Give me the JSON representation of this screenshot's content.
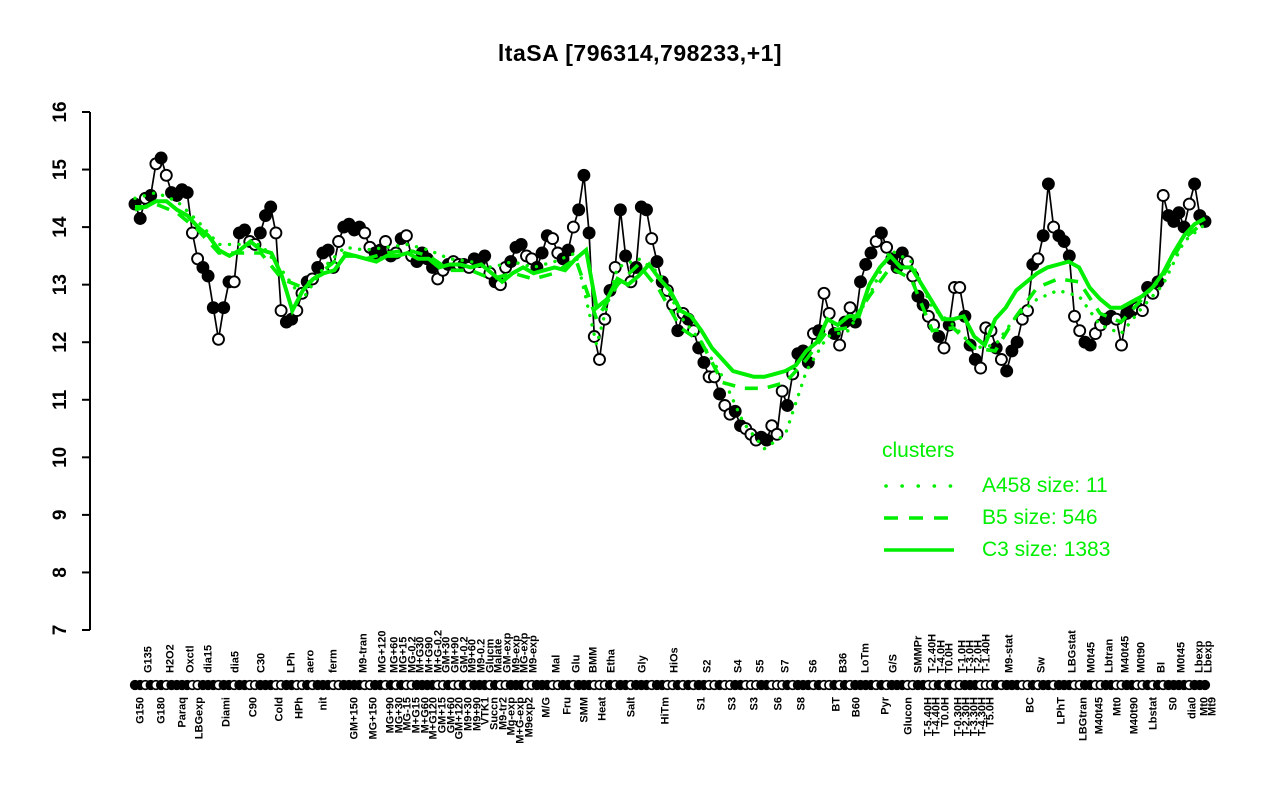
{
  "title": "ltaSA [796314,798233,+1]",
  "colors": {
    "cluster_green": "#00ee00",
    "series_black": "#000000",
    "background": "#ffffff"
  },
  "legend": {
    "header": "clusters",
    "items": [
      {
        "label": "A458 size: 11",
        "style": "dotted"
      },
      {
        "label": "B5 size: 546",
        "style": "dashed"
      },
      {
        "label": "C3 size: 1383",
        "style": "solid"
      }
    ]
  },
  "chart_data": {
    "type": "line",
    "title": "ltaSA [796314,798233,+1]",
    "xlabel": "",
    "ylabel": "",
    "ylim": [
      7,
      16
    ],
    "y_ticks": [
      7,
      8,
      9,
      10,
      11,
      12,
      13,
      14,
      15,
      16
    ],
    "grid": false,
    "legend_position": "right-middle",
    "gene_series": {
      "name": "ltaSA",
      "color": "#000000",
      "markers": "ffofofoffffoofffoffoffoofffooffoofofffooffffooffofofooffffoofoofofffofoofffoofffooffofffooofoffofffoffoofofoffoofooffoooffooofofffofoofofoffffofofffooffoofofoofffooofofffoofoffofffooffooffooffoofofoffffofff",
      "values": [
        14.4,
        14.15,
        14.5,
        14.55,
        15.1,
        15.2,
        14.9,
        14.6,
        14.55,
        14.65,
        14.6,
        13.9,
        13.45,
        13.3,
        13.15,
        12.6,
        12.05,
        12.6,
        13.05,
        13.05,
        13.9,
        13.95,
        13.75,
        13.7,
        13.9,
        14.2,
        14.35,
        13.9,
        12.55,
        12.35,
        12.4,
        12.55,
        12.85,
        13.05,
        13.1,
        13.3,
        13.55,
        13.6,
        13.3,
        13.75,
        14.0,
        14.05,
        13.95,
        14.0,
        13.9,
        13.65,
        13.55,
        13.6,
        13.75,
        13.5,
        13.55,
        13.8,
        13.85,
        13.5,
        13.4,
        13.55,
        13.45,
        13.3,
        13.1,
        13.25,
        13.35,
        13.4,
        13.35,
        13.35,
        13.3,
        13.45,
        13.4,
        13.5,
        13.2,
        13.05,
        13.0,
        13.3,
        13.4,
        13.65,
        13.7,
        13.5,
        13.45,
        13.3,
        13.55,
        13.85,
        13.8,
        13.55,
        13.45,
        13.6,
        14.0,
        14.3,
        14.9,
        13.9,
        12.1,
        11.7,
        12.4,
        12.9,
        13.3,
        14.3,
        13.5,
        13.05,
        13.3,
        14.35,
        14.3,
        13.8,
        13.4,
        13.05,
        12.9,
        12.65,
        12.2,
        12.5,
        12.4,
        12.2,
        11.9,
        11.65,
        11.4,
        11.4,
        11.1,
        10.9,
        10.75,
        10.8,
        10.55,
        10.5,
        10.4,
        10.3,
        10.35,
        10.3,
        10.55,
        10.4,
        11.15,
        10.9,
        11.45,
        11.8,
        11.85,
        11.65,
        12.15,
        12.2,
        12.85,
        12.5,
        12.15,
        11.95,
        12.35,
        12.6,
        12.35,
        13.05,
        13.35,
        13.55,
        13.75,
        13.9,
        13.65,
        13.45,
        13.3,
        13.55,
        13.4,
        13.15,
        12.8,
        12.65,
        12.45,
        12.3,
        12.1,
        11.9,
        12.3,
        12.95,
        12.95,
        12.45,
        11.95,
        11.7,
        11.55,
        12.25,
        12.2,
        11.9,
        11.7,
        11.5,
        11.85,
        12.0,
        12.4,
        12.55,
        13.35,
        13.45,
        13.85,
        14.75,
        14.0,
        13.85,
        13.75,
        13.5,
        12.45,
        12.2,
        12.0,
        11.95,
        12.15,
        12.3,
        12.4,
        12.45,
        12.4,
        11.95,
        12.5,
        12.55,
        12.6,
        12.55,
        12.95,
        12.85,
        13.05,
        14.55,
        14.2,
        14.1,
        14.25,
        14.0,
        14.4,
        14.75,
        14.2,
        14.1
      ]
    },
    "cluster_series": [
      {
        "name": "A458",
        "size": 11,
        "style": "dotted",
        "values": [
          14.5,
          14.6,
          14.45,
          14.1,
          13.7,
          13.7,
          13.7,
          13.25,
          12.75,
          13.3,
          13.65,
          13.6,
          13.65,
          13.7,
          13.6,
          13.45,
          13.4,
          13.3,
          13.4,
          13.3,
          13.4,
          13.55,
          11.95,
          13.3,
          13.45,
          13.2,
          12.45,
          12.0,
          11.4,
          10.6,
          10.15,
          10.4,
          11.5,
          12.1,
          12.2,
          12.8,
          13.6,
          13.4,
          12.6,
          12.3,
          11.9,
          11.95,
          12.45,
          12.75,
          12.9,
          12.8,
          12.3,
          12.15,
          12.6,
          13.0,
          13.75,
          14.05
        ]
      },
      {
        "name": "B5",
        "size": 546,
        "style": "dashed",
        "values": [
          14.3,
          14.4,
          14.25,
          13.95,
          13.55,
          13.55,
          13.55,
          13.1,
          12.95,
          13.25,
          13.55,
          13.45,
          13.55,
          13.6,
          13.5,
          13.25,
          13.25,
          13.1,
          13.2,
          13.1,
          13.2,
          13.45,
          12.4,
          13.0,
          13.35,
          12.9,
          12.25,
          12.0,
          11.3,
          11.2,
          11.2,
          11.3,
          11.7,
          12.2,
          12.25,
          12.8,
          13.3,
          13.1,
          12.2,
          12.25,
          11.9,
          11.85,
          12.45,
          12.95,
          13.1,
          13.05,
          12.5,
          12.35,
          12.75,
          13.15,
          13.8,
          14.1
        ]
      },
      {
        "name": "C3",
        "size": 1383,
        "style": "solid",
        "values": [
          14.35,
          14.35,
          14.45,
          14.45,
          14.3,
          14.2,
          14.0,
          13.85,
          13.6,
          13.5,
          13.6,
          13.75,
          13.6,
          13.55,
          13.15,
          12.55,
          12.9,
          13.1,
          13.2,
          13.25,
          13.5,
          13.5,
          13.45,
          13.4,
          13.5,
          13.5,
          13.55,
          13.45,
          13.45,
          13.3,
          13.35,
          13.35,
          13.3,
          13.35,
          13.2,
          13.05,
          13.2,
          13.3,
          13.2,
          13.25,
          13.3,
          13.25,
          13.45,
          13.6,
          12.6,
          12.75,
          13.1,
          13.0,
          13.15,
          13.35,
          13.1,
          12.9,
          12.55,
          12.45,
          12.2,
          11.9,
          11.7,
          11.5,
          11.45,
          11.4,
          11.4,
          11.45,
          11.5,
          11.6,
          11.85,
          12.0,
          12.4,
          12.3,
          12.45,
          12.45,
          13.0,
          13.3,
          13.5,
          13.3,
          13.3,
          13.0,
          12.7,
          12.4,
          12.4,
          12.45,
          12.1,
          11.95,
          12.4,
          12.6,
          12.9,
          13.05,
          13.2,
          13.3,
          13.35,
          13.4,
          13.3,
          12.95,
          12.75,
          12.6,
          12.6,
          12.7,
          12.8,
          12.95,
          13.2,
          13.55,
          13.85,
          14.05,
          14.15
        ]
      }
    ],
    "axis_strip_markers": "ffofofoffffoofffoffoffoofffooffoofofffooffffooffofofooffffoofoofofffofoofffoofffooffofffooofoffofffoffoofofoffoofooffoooffooofofffofoofofoffffofofffooffoofofoofffooofofffoofoffofffooffooffooffoofofoffffofff",
    "x_tick_labels": [
      [
        140,
        "b",
        "G150"
      ],
      [
        148,
        "t",
        "G135"
      ],
      [
        161,
        "b",
        "G180"
      ],
      [
        170,
        "t",
        "H2O2"
      ],
      [
        182,
        "b",
        "Paraq"
      ],
      [
        190,
        "t",
        "Oxctl"
      ],
      [
        199,
        "b",
        "LBGexp"
      ],
      [
        208,
        "t",
        "dia15"
      ],
      [
        226,
        "b",
        "Diami"
      ],
      [
        235,
        "t",
        "dia5"
      ],
      [
        253,
        "b",
        "C90"
      ],
      [
        261,
        "t",
        "C30"
      ],
      [
        279,
        "b",
        "Cold"
      ],
      [
        291,
        "t",
        "LPh"
      ],
      [
        299,
        "b",
        "HPh"
      ],
      [
        310,
        "t",
        "aero"
      ],
      [
        323,
        "b",
        "nit"
      ],
      [
        333,
        "t",
        "ferm"
      ],
      [
        354,
        "b",
        "GM+150"
      ],
      [
        363,
        "t",
        "M9-tran"
      ],
      [
        373,
        "b",
        "MG+150"
      ],
      [
        382,
        "t",
        "MG+120"
      ],
      [
        390,
        "b",
        "MG+90"
      ],
      [
        394,
        "t",
        "MG+60"
      ],
      [
        399,
        "b",
        "MG+30"
      ],
      [
        403,
        "t",
        "MG+15"
      ],
      [
        407,
        "b",
        "MG-15"
      ],
      [
        412,
        "t",
        "MG-0.2"
      ],
      [
        416,
        "b",
        "M+G15"
      ],
      [
        420,
        "t",
        "M+G30"
      ],
      [
        425,
        "b",
        "M+G60"
      ],
      [
        429,
        "t",
        "M+G90"
      ],
      [
        433,
        "b",
        "M+G120"
      ],
      [
        438,
        "t",
        "M+G-0.2"
      ],
      [
        442,
        "b",
        "GM+15"
      ],
      [
        446,
        "t",
        "GM+30"
      ],
      [
        451,
        "b",
        "GM+60"
      ],
      [
        455,
        "t",
        "GM+90"
      ],
      [
        459,
        "b",
        "GM+120"
      ],
      [
        464,
        "t",
        "GM-0.2"
      ],
      [
        468,
        "b",
        "M9+30"
      ],
      [
        472,
        "t",
        "M9+60"
      ],
      [
        477,
        "b",
        "M9+90"
      ],
      [
        481,
        "t",
        "M9-0.2"
      ],
      [
        485,
        "b",
        "VTK1"
      ],
      [
        490,
        "t",
        "Glucm"
      ],
      [
        494,
        "b",
        "Succn"
      ],
      [
        498,
        "t",
        "Malate"
      ],
      [
        503,
        "b",
        "M9-tr2"
      ],
      [
        507,
        "t",
        "GM-exp"
      ],
      [
        511,
        "b",
        "Mg-exp"
      ],
      [
        516,
        "t",
        "M9-exp"
      ],
      [
        520,
        "b",
        "M+G-exp"
      ],
      [
        524,
        "t",
        "MG-exp"
      ],
      [
        529,
        "b",
        "M9exp2"
      ],
      [
        533,
        "t",
        "M9-exp"
      ],
      [
        546,
        "b",
        "M/G"
      ],
      [
        556,
        "t",
        "Mal"
      ],
      [
        567,
        "b",
        "Fru"
      ],
      [
        576,
        "t",
        "Glu"
      ],
      [
        584,
        "b",
        "SMM"
      ],
      [
        593,
        "t",
        "BMM"
      ],
      [
        602,
        "b",
        "Heat"
      ],
      [
        611,
        "t",
        "Etha"
      ],
      [
        631,
        "b",
        "Salt"
      ],
      [
        642,
        "t",
        "Gly"
      ],
      [
        665,
        "b",
        "HiTm"
      ],
      [
        674,
        "t",
        "HiOs"
      ],
      [
        701,
        "b",
        "S1"
      ],
      [
        707,
        "t",
        "S2"
      ],
      [
        732,
        "b",
        "S3"
      ],
      [
        738,
        "t",
        "S4"
      ],
      [
        754,
        "b",
        "S3"
      ],
      [
        760,
        "t",
        "S5"
      ],
      [
        778,
        "b",
        "S6"
      ],
      [
        785,
        "t",
        "S7"
      ],
      [
        801,
        "b",
        "S8"
      ],
      [
        813,
        "t",
        "S6"
      ],
      [
        836,
        "b",
        "BT"
      ],
      [
        843,
        "t",
        "B36"
      ],
      [
        856,
        "b",
        "B60"
      ],
      [
        865,
        "t",
        "LoTm"
      ],
      [
        885,
        "b",
        "Pyr"
      ],
      [
        893,
        "t",
        "G/S"
      ],
      [
        908,
        "b",
        "Glucon"
      ],
      [
        918,
        "t",
        "SMMPr"
      ],
      [
        928,
        "b",
        "T-5.40H"
      ],
      [
        932,
        "t",
        "T-2.40H"
      ],
      [
        936,
        "b",
        "T-4.40H"
      ],
      [
        941,
        "t",
        "T-4.0H"
      ],
      [
        945,
        "b",
        "T0.0H"
      ],
      [
        949,
        "t",
        "T0.0H"
      ],
      [
        958,
        "b",
        "T-0.30H"
      ],
      [
        962,
        "t",
        "T-1.0H"
      ],
      [
        966,
        "b",
        "T-2.30H"
      ],
      [
        970,
        "t",
        "T-3.0H"
      ],
      [
        974,
        "b",
        "T-3.30H"
      ],
      [
        978,
        "t",
        "T-2.0H"
      ],
      [
        982,
        "b",
        "T-4.30H"
      ],
      [
        986,
        "t",
        "T-1.40H"
      ],
      [
        990,
        "b",
        "T5.0H"
      ],
      [
        1009,
        "t",
        "M9-stat"
      ],
      [
        1030,
        "b",
        "BC"
      ],
      [
        1041,
        "t",
        "Sw"
      ],
      [
        1061,
        "b",
        "LPhT"
      ],
      [
        1072,
        "t",
        "LBGstat"
      ],
      [
        1083,
        "b",
        "LBGtran"
      ],
      [
        1091,
        "t",
        "M0t45"
      ],
      [
        1099,
        "b",
        "M40t45"
      ],
      [
        1109,
        "t",
        "Lbtran"
      ],
      [
        1117,
        "b",
        "Mt0"
      ],
      [
        1125,
        "t",
        "M40t45"
      ],
      [
        1134,
        "b",
        "M40t90"
      ],
      [
        1141,
        "t",
        "M0t90"
      ],
      [
        1153,
        "b",
        "Lbstat"
      ],
      [
        1161,
        "t",
        "BI"
      ],
      [
        1173,
        "b",
        "S0"
      ],
      [
        1181,
        "t",
        "M0t45"
      ],
      [
        1192,
        "b",
        "dia0"
      ],
      [
        1199,
        "t",
        "Lbexp"
      ],
      [
        1204,
        "b",
        "Mt0"
      ],
      [
        1208,
        "t",
        "Lbexp"
      ],
      [
        1212,
        "b",
        "Mt9"
      ]
    ]
  }
}
